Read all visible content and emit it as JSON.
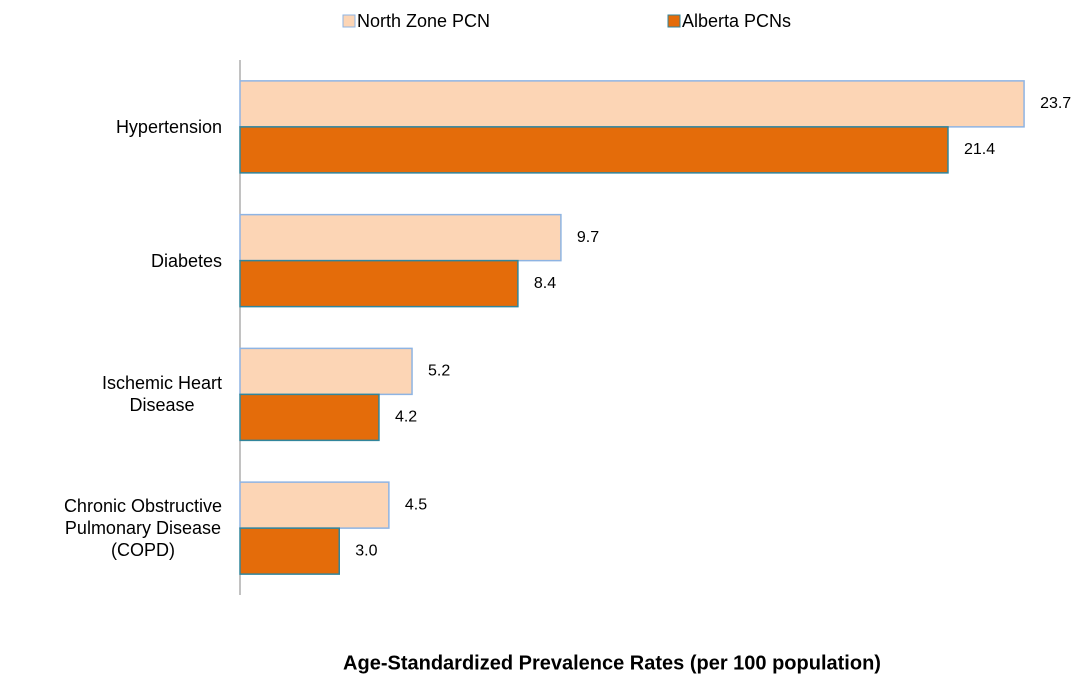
{
  "chart_data": {
    "type": "hbar",
    "title": "Age-Standardized Prevalence Rates (per 100 population)",
    "categories": [
      "Hypertension",
      "Diabetes",
      "Ischemic Heart\nDisease",
      "Chronic Obstructive\nPulmonary Disease\n(COPD)"
    ],
    "series": [
      {
        "name": "North Zone PCN",
        "color": "#fcd5b5",
        "border": "#8eb4e3",
        "values": [
          23.7,
          9.7,
          5.2,
          4.5
        ],
        "value_labels": [
          "23.7",
          "9.7",
          "5.2",
          "4.5"
        ]
      },
      {
        "name": "Alberta PCNs",
        "color": "#e46c0a",
        "border": "#31859c",
        "values": [
          21.4,
          8.4,
          4.2,
          3.0
        ],
        "value_labels": [
          "21.4",
          "8.4",
          "4.2",
          "3.0"
        ]
      }
    ],
    "xlim": [
      0,
      24
    ]
  }
}
